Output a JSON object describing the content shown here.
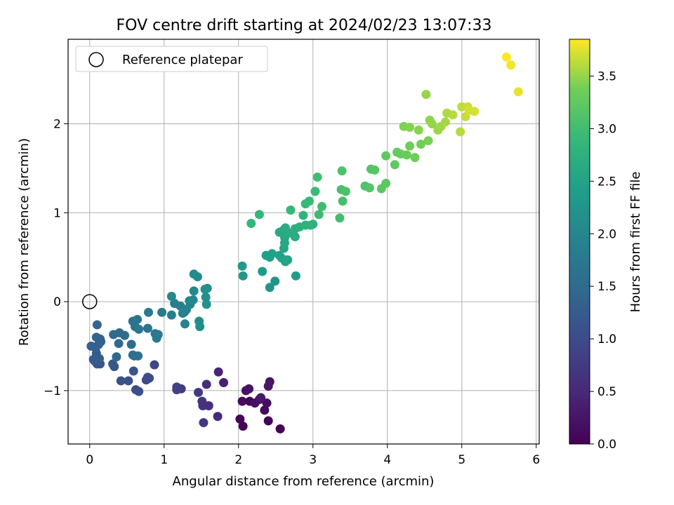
{
  "chart_data": {
    "type": "scatter",
    "title": "FOV centre drift starting at 2024/02/23 13:07:33",
    "xlabel": "Angular distance from reference (arcmin)",
    "ylabel": "Rotation from reference (arcmin)",
    "xlim": [
      -0.29,
      6.04
    ],
    "ylim": [
      -1.6,
      2.95
    ],
    "xticks": [
      0,
      1,
      2,
      3,
      4,
      5,
      6
    ],
    "xtick_labels": [
      "0",
      "1",
      "2",
      "3",
      "4",
      "5",
      "6"
    ],
    "yticks": [
      -1,
      0,
      1,
      2
    ],
    "ytick_labels": [
      "−1",
      "0",
      "1",
      "2"
    ],
    "grid": true,
    "legend": {
      "position": "upper-left",
      "label": "Reference platepar"
    },
    "reference_point": {
      "x": 0,
      "y": 0
    },
    "colorbar": {
      "label": "Hours from first FF file",
      "min": 0.0,
      "max": 3.85,
      "ticks": [
        0.0,
        0.5,
        1.0,
        1.5,
        2.0,
        2.5,
        3.0,
        3.5
      ],
      "tick_labels": [
        "0.0",
        "0.5",
        "1.0",
        "1.5",
        "2.0",
        "2.5",
        "3.0",
        "3.5"
      ],
      "colormap": "viridis"
    },
    "points": [
      {
        "x": 2.56,
        "y": -1.43,
        "c": 0.02
      },
      {
        "x": 2.4,
        "y": -1.34,
        "c": 0.04
      },
      {
        "x": 2.02,
        "y": -1.32,
        "c": 0.06
      },
      {
        "x": 2.06,
        "y": -1.4,
        "c": 0.08
      },
      {
        "x": 2.15,
        "y": -1.12,
        "c": 0.1
      },
      {
        "x": 2.35,
        "y": -1.22,
        "c": 0.12
      },
      {
        "x": 2.05,
        "y": -1.12,
        "c": 0.14
      },
      {
        "x": 2.38,
        "y": -1.14,
        "c": 0.16
      },
      {
        "x": 2.28,
        "y": -1.1,
        "c": 0.18
      },
      {
        "x": 2.22,
        "y": -1.14,
        "c": 0.2
      },
      {
        "x": 2.1,
        "y": -1.0,
        "c": 0.22
      },
      {
        "x": 2.14,
        "y": -0.98,
        "c": 0.24
      },
      {
        "x": 2.42,
        "y": -0.9,
        "c": 0.26
      },
      {
        "x": 2.4,
        "y": -0.95,
        "c": 0.28
      },
      {
        "x": 2.3,
        "y": -1.08,
        "c": 0.3
      },
      {
        "x": 1.8,
        "y": -0.91,
        "c": 0.38
      },
      {
        "x": 1.73,
        "y": -0.79,
        "c": 0.45
      },
      {
        "x": 1.72,
        "y": -1.29,
        "c": 0.5
      },
      {
        "x": 1.57,
        "y": -0.93,
        "c": 0.55
      },
      {
        "x": 1.6,
        "y": -1.17,
        "c": 0.58
      },
      {
        "x": 1.52,
        "y": -1.17,
        "c": 0.62
      },
      {
        "x": 1.51,
        "y": -1.12,
        "c": 0.66
      },
      {
        "x": 1.53,
        "y": -1.36,
        "c": 0.7
      },
      {
        "x": 1.46,
        "y": -1.02,
        "c": 0.74
      },
      {
        "x": 1.23,
        "y": -0.98,
        "c": 0.78
      },
      {
        "x": 1.17,
        "y": -0.96,
        "c": 0.82
      },
      {
        "x": 1.17,
        "y": -0.99,
        "c": 0.86
      },
      {
        "x": 0.87,
        "y": -0.71,
        "c": 0.92
      },
      {
        "x": 0.8,
        "y": -0.86,
        "c": 0.96
      },
      {
        "x": 0.76,
        "y": -0.88,
        "c": 1.0
      },
      {
        "x": 0.78,
        "y": -0.85,
        "c": 1.02
      },
      {
        "x": 0.62,
        "y": -0.99,
        "c": 1.04
      },
      {
        "x": 0.66,
        "y": -1.01,
        "c": 1.06
      },
      {
        "x": 0.52,
        "y": -0.89,
        "c": 1.08
      },
      {
        "x": 0.42,
        "y": -0.89,
        "c": 1.1
      },
      {
        "x": 0.59,
        "y": -0.78,
        "c": 1.12
      },
      {
        "x": 0.33,
        "y": -0.73,
        "c": 1.14
      },
      {
        "x": 0.31,
        "y": -0.7,
        "c": 1.16
      },
      {
        "x": 0.1,
        "y": -0.7,
        "c": 1.18
      },
      {
        "x": 0.14,
        "y": -0.7,
        "c": 1.2
      },
      {
        "x": 0.07,
        "y": -0.67,
        "c": 1.22
      },
      {
        "x": 0.13,
        "y": -0.64,
        "c": 1.24
      },
      {
        "x": 0.05,
        "y": -0.65,
        "c": 1.26
      },
      {
        "x": 0.09,
        "y": -0.58,
        "c": 1.28
      },
      {
        "x": 0.08,
        "y": -0.52,
        "c": 1.3
      },
      {
        "x": 0.02,
        "y": -0.5,
        "c": 1.32
      },
      {
        "x": 0.12,
        "y": -0.48,
        "c": 1.34
      },
      {
        "x": 0.15,
        "y": -0.45,
        "c": 1.36
      },
      {
        "x": 0.14,
        "y": -0.42,
        "c": 1.38
      },
      {
        "x": 0.09,
        "y": -0.4,
        "c": 1.4
      },
      {
        "x": 0.1,
        "y": -0.26,
        "c": 1.42
      },
      {
        "x": 0.36,
        "y": -0.62,
        "c": 1.44
      },
      {
        "x": 0.39,
        "y": -0.47,
        "c": 1.46
      },
      {
        "x": 0.32,
        "y": -0.37,
        "c": 1.48
      },
      {
        "x": 0.4,
        "y": -0.35,
        "c": 1.5
      },
      {
        "x": 0.47,
        "y": -0.38,
        "c": 1.52
      },
      {
        "x": 0.56,
        "y": -0.48,
        "c": 1.54
      },
      {
        "x": 0.58,
        "y": -0.6,
        "c": 1.56
      },
      {
        "x": 0.6,
        "y": -0.61,
        "c": 1.58
      },
      {
        "x": 0.65,
        "y": -0.61,
        "c": 1.6
      },
      {
        "x": 0.58,
        "y": -0.22,
        "c": 1.62
      },
      {
        "x": 0.61,
        "y": -0.28,
        "c": 1.64
      },
      {
        "x": 0.64,
        "y": -0.2,
        "c": 1.66
      },
      {
        "x": 0.66,
        "y": -0.31,
        "c": 1.68
      },
      {
        "x": 0.78,
        "y": -0.3,
        "c": 1.7
      },
      {
        "x": 0.79,
        "y": -0.12,
        "c": 1.72
      },
      {
        "x": 0.88,
        "y": -0.36,
        "c": 1.74
      },
      {
        "x": 0.92,
        "y": -0.37,
        "c": 1.76
      },
      {
        "x": 0.9,
        "y": -0.41,
        "c": 1.78
      },
      {
        "x": 0.97,
        "y": -0.12,
        "c": 1.8
      },
      {
        "x": 1.1,
        "y": -0.15,
        "c": 1.82
      },
      {
        "x": 1.14,
        "y": -0.02,
        "c": 1.84
      },
      {
        "x": 1.22,
        "y": -0.05,
        "c": 1.86
      },
      {
        "x": 1.25,
        "y": -0.13,
        "c": 1.88
      },
      {
        "x": 1.28,
        "y": -0.25,
        "c": 1.9
      },
      {
        "x": 1.27,
        "y": -0.12,
        "c": 1.92
      },
      {
        "x": 1.3,
        "y": -0.09,
        "c": 1.94
      },
      {
        "x": 1.35,
        "y": -0.03,
        "c": 1.96
      },
      {
        "x": 1.34,
        "y": 0.01,
        "c": 1.98
      },
      {
        "x": 1.39,
        "y": 0.02,
        "c": 2.0
      },
      {
        "x": 1.1,
        "y": 0.06,
        "c": 2.02
      },
      {
        "x": 1.4,
        "y": 0.12,
        "c": 2.04
      },
      {
        "x": 1.4,
        "y": 0.31,
        "c": 2.06
      },
      {
        "x": 1.45,
        "y": 0.28,
        "c": 2.08
      },
      {
        "x": 1.47,
        "y": -0.22,
        "c": 2.1
      },
      {
        "x": 1.48,
        "y": -0.28,
        "c": 2.12
      },
      {
        "x": 1.55,
        "y": 0.14,
        "c": 2.14
      },
      {
        "x": 1.58,
        "y": 0.15,
        "c": 2.16
      },
      {
        "x": 1.56,
        "y": 0.05,
        "c": 2.18
      },
      {
        "x": 1.57,
        "y": -0.03,
        "c": 2.2
      },
      {
        "x": 2.42,
        "y": 0.16,
        "c": 2.22
      },
      {
        "x": 2.49,
        "y": 0.23,
        "c": 2.26
      },
      {
        "x": 2.06,
        "y": 0.29,
        "c": 2.3
      },
      {
        "x": 2.05,
        "y": 0.4,
        "c": 2.34
      },
      {
        "x": 2.32,
        "y": 0.34,
        "c": 2.38
      },
      {
        "x": 2.77,
        "y": 0.29,
        "c": 2.4
      },
      {
        "x": 2.37,
        "y": 0.52,
        "c": 2.42
      },
      {
        "x": 2.42,
        "y": 0.5,
        "c": 2.44
      },
      {
        "x": 2.45,
        "y": 0.54,
        "c": 2.46
      },
      {
        "x": 2.55,
        "y": 0.52,
        "c": 2.48
      },
      {
        "x": 2.58,
        "y": 0.49,
        "c": 2.5
      },
      {
        "x": 2.63,
        "y": 0.45,
        "c": 2.52
      },
      {
        "x": 2.66,
        "y": 0.47,
        "c": 2.54
      },
      {
        "x": 2.61,
        "y": 0.6,
        "c": 2.56
      },
      {
        "x": 2.62,
        "y": 0.66,
        "c": 2.58
      },
      {
        "x": 2.62,
        "y": 0.72,
        "c": 2.6
      },
      {
        "x": 2.55,
        "y": 0.78,
        "c": 2.62
      },
      {
        "x": 2.6,
        "y": 0.8,
        "c": 2.64
      },
      {
        "x": 2.63,
        "y": 0.83,
        "c": 2.66
      },
      {
        "x": 2.7,
        "y": 0.77,
        "c": 2.68
      },
      {
        "x": 2.76,
        "y": 0.73,
        "c": 2.7
      },
      {
        "x": 2.76,
        "y": 0.82,
        "c": 2.72
      },
      {
        "x": 2.82,
        "y": 0.84,
        "c": 2.74
      },
      {
        "x": 2.9,
        "y": 0.86,
        "c": 2.76
      },
      {
        "x": 2.97,
        "y": 0.86,
        "c": 2.78
      },
      {
        "x": 3.0,
        "y": 0.87,
        "c": 2.8
      },
      {
        "x": 2.87,
        "y": 0.97,
        "c": 2.82
      },
      {
        "x": 2.17,
        "y": 0.88,
        "c": 2.84
      },
      {
        "x": 2.28,
        "y": 0.98,
        "c": 2.86
      },
      {
        "x": 2.7,
        "y": 1.03,
        "c": 2.88
      },
      {
        "x": 2.9,
        "y": 1.1,
        "c": 2.9
      },
      {
        "x": 2.95,
        "y": 1.13,
        "c": 2.92
      },
      {
        "x": 3.03,
        "y": 1.24,
        "c": 2.94
      },
      {
        "x": 3.08,
        "y": 0.98,
        "c": 2.96
      },
      {
        "x": 3.12,
        "y": 1.07,
        "c": 2.98
      },
      {
        "x": 3.06,
        "y": 1.4,
        "c": 3.0
      },
      {
        "x": 3.36,
        "y": 0.94,
        "c": 3.02
      },
      {
        "x": 3.4,
        "y": 1.13,
        "c": 3.04
      },
      {
        "x": 3.38,
        "y": 1.26,
        "c": 3.06
      },
      {
        "x": 3.44,
        "y": 1.24,
        "c": 3.08
      },
      {
        "x": 3.39,
        "y": 1.47,
        "c": 3.1
      },
      {
        "x": 3.7,
        "y": 1.3,
        "c": 3.12
      },
      {
        "x": 3.76,
        "y": 1.28,
        "c": 3.14
      },
      {
        "x": 3.78,
        "y": 1.49,
        "c": 3.16
      },
      {
        "x": 3.83,
        "y": 1.48,
        "c": 3.18
      },
      {
        "x": 3.92,
        "y": 1.27,
        "c": 3.2
      },
      {
        "x": 3.98,
        "y": 1.33,
        "c": 3.22
      },
      {
        "x": 3.98,
        "y": 1.64,
        "c": 3.24
      },
      {
        "x": 4.1,
        "y": 1.54,
        "c": 3.26
      },
      {
        "x": 4.13,
        "y": 1.68,
        "c": 3.28
      },
      {
        "x": 4.18,
        "y": 1.66,
        "c": 3.3
      },
      {
        "x": 4.26,
        "y": 1.65,
        "c": 3.32
      },
      {
        "x": 4.3,
        "y": 1.75,
        "c": 3.34
      },
      {
        "x": 4.37,
        "y": 1.62,
        "c": 3.36
      },
      {
        "x": 4.45,
        "y": 1.77,
        "c": 3.38
      },
      {
        "x": 4.55,
        "y": 1.81,
        "c": 3.4
      },
      {
        "x": 4.22,
        "y": 1.97,
        "c": 3.42
      },
      {
        "x": 4.3,
        "y": 1.96,
        "c": 3.44
      },
      {
        "x": 4.42,
        "y": 1.93,
        "c": 3.46
      },
      {
        "x": 4.57,
        "y": 2.04,
        "c": 3.48
      },
      {
        "x": 4.6,
        "y": 2.0,
        "c": 3.5
      },
      {
        "x": 4.68,
        "y": 1.93,
        "c": 3.52
      },
      {
        "x": 4.72,
        "y": 1.97,
        "c": 3.54
      },
      {
        "x": 4.78,
        "y": 2.02,
        "c": 3.56
      },
      {
        "x": 4.8,
        "y": 2.12,
        "c": 3.58
      },
      {
        "x": 4.88,
        "y": 2.1,
        "c": 3.6
      },
      {
        "x": 4.98,
        "y": 1.91,
        "c": 3.62
      },
      {
        "x": 5.0,
        "y": 2.19,
        "c": 3.64
      },
      {
        "x": 5.05,
        "y": 2.08,
        "c": 3.66
      },
      {
        "x": 5.08,
        "y": 2.19,
        "c": 3.68
      },
      {
        "x": 5.1,
        "y": 2.15,
        "c": 3.7
      },
      {
        "x": 5.17,
        "y": 2.14,
        "c": 3.72
      },
      {
        "x": 4.52,
        "y": 2.33,
        "c": 3.5
      },
      {
        "x": 5.76,
        "y": 2.36,
        "c": 3.78
      },
      {
        "x": 5.66,
        "y": 2.66,
        "c": 3.82
      },
      {
        "x": 5.6,
        "y": 2.75,
        "c": 3.85
      }
    ]
  }
}
